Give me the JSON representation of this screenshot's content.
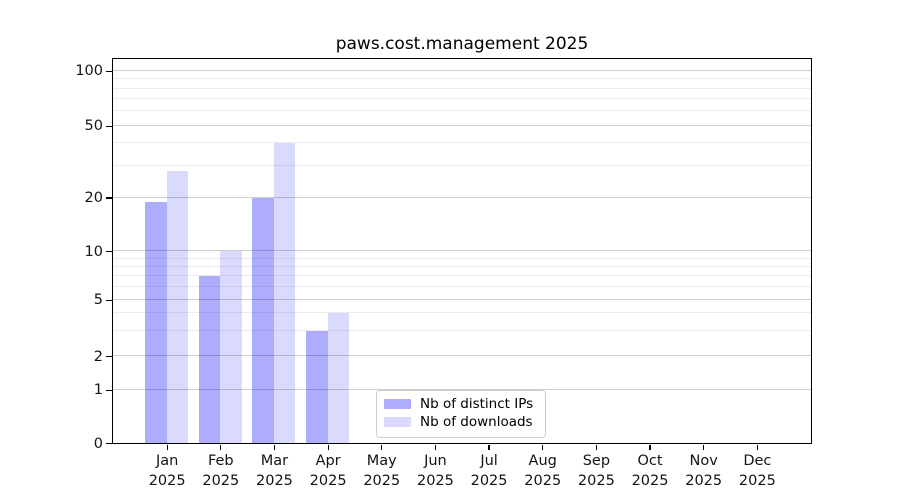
{
  "chart_data": {
    "type": "bar",
    "title": "paws.cost.management 2025",
    "categories": [
      "Jan",
      "Feb",
      "Mar",
      "Apr",
      "May",
      "Jun",
      "Jul",
      "Aug",
      "Sep",
      "Oct",
      "Nov",
      "Dec"
    ],
    "category_year": "2025",
    "series": [
      {
        "name": "Nb of distinct IPs",
        "color": "rgba(8,8,245,0.335)",
        "color_solid": "#aaaaf8",
        "values": [
          19,
          7,
          20,
          3,
          0,
          0,
          0,
          0,
          0,
          0,
          0,
          0
        ]
      },
      {
        "name": "Nb of downloads",
        "color": "rgba(8,8,245,0.148)",
        "color_solid": "#dbdbfa",
        "values": [
          28,
          10,
          40,
          4,
          0,
          0,
          0,
          0,
          0,
          0,
          0,
          0
        ]
      }
    ],
    "yscale": "symlog",
    "ylim": [
      0,
      100
    ],
    "y_ticks": [
      100,
      50,
      20,
      10,
      5,
      2,
      1,
      0
    ],
    "y_minor_ticks": [
      3,
      4,
      6,
      7,
      8,
      9,
      30,
      40,
      60,
      70,
      80,
      90
    ],
    "grid": "horizontal",
    "legend_position": "bottom-center-inside",
    "xlabel": "",
    "ylabel": ""
  }
}
